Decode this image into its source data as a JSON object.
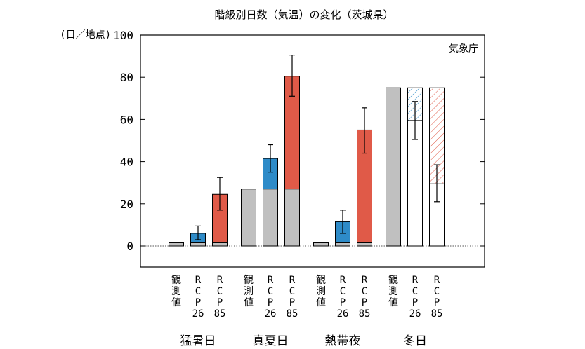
{
  "chart_data": {
    "type": "bar",
    "title": "階級別日数（気温）の変化（茨城県）",
    "ylabel": "(日／地点)",
    "ylim": [
      -10,
      100
    ],
    "yticks": [
      0,
      20,
      40,
      60,
      80,
      100
    ],
    "source_label": "気象庁",
    "grid": false,
    "legend": "none",
    "zero_line": "dotted",
    "groups": [
      {
        "name": "猛暑日",
        "bars": [
          {
            "label": [
              "観",
              "測",
              "値"
            ],
            "base": 1.5,
            "value": null,
            "error": null,
            "color": "#2e8bc8",
            "style": "solid"
          },
          {
            "label": [
              "R",
              "C",
              "P",
              "26"
            ],
            "base": 1.5,
            "value": 6,
            "error": [
              3,
              9.5
            ],
            "color": "#2e8bc8",
            "style": "solid"
          },
          {
            "label": [
              "R",
              "C",
              "P",
              "85"
            ],
            "base": 1.5,
            "value": 24.5,
            "error": [
              17,
              32.5
            ],
            "color": "#e05a48",
            "style": "solid"
          }
        ]
      },
      {
        "name": "真夏日",
        "bars": [
          {
            "label": [
              "観",
              "測",
              "値"
            ],
            "base": 27,
            "value": null,
            "error": null,
            "color": "#2e8bc8",
            "style": "solid"
          },
          {
            "label": [
              "R",
              "C",
              "P",
              "26"
            ],
            "base": 27,
            "value": 41.5,
            "error": [
              35,
              48
            ],
            "color": "#2e8bc8",
            "style": "solid"
          },
          {
            "label": [
              "R",
              "C",
              "P",
              "85"
            ],
            "base": 27,
            "value": 80.5,
            "error": [
              71,
              90.5
            ],
            "color": "#e05a48",
            "style": "solid"
          }
        ]
      },
      {
        "name": "熱帯夜",
        "bars": [
          {
            "label": [
              "観",
              "測",
              "値"
            ],
            "base": 1.5,
            "value": null,
            "error": null,
            "color": "#2e8bc8",
            "style": "solid"
          },
          {
            "label": [
              "R",
              "C",
              "P",
              "26"
            ],
            "base": 1.5,
            "value": 11.5,
            "error": [
              6,
              17
            ],
            "color": "#2e8bc8",
            "style": "solid"
          },
          {
            "label": [
              "R",
              "C",
              "P",
              "85"
            ],
            "base": 1.5,
            "value": 55,
            "error": [
              44,
              65.5
            ],
            "color": "#e05a48",
            "style": "solid"
          }
        ]
      },
      {
        "name": "冬日",
        "bars": [
          {
            "label": [
              "観",
              "測",
              "値"
            ],
            "base": 75,
            "value": null,
            "error": null,
            "color": "#2e8bc8",
            "style": "solid"
          },
          {
            "label": [
              "R",
              "C",
              "P",
              "26"
            ],
            "base": 75,
            "value": 59.5,
            "error": [
              50.5,
              68.5
            ],
            "color": "#2e8bc8",
            "style": "hatched-decrease"
          },
          {
            "label": [
              "R",
              "C",
              "P",
              "85"
            ],
            "base": 75,
            "value": 29.5,
            "error": [
              21,
              38.5
            ],
            "color": "#e05a48",
            "style": "hatched-decrease"
          }
        ]
      }
    ]
  }
}
